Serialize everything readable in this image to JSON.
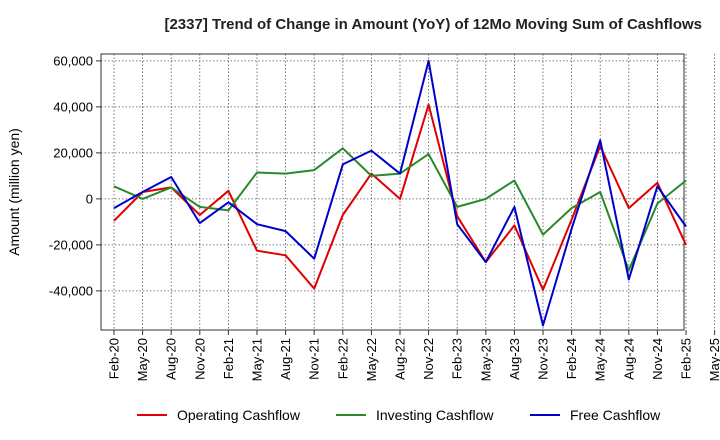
{
  "chart_data": {
    "type": "line",
    "title": "[2337]  Trend of Change in Amount (YoY) of 12Mo Moving Sum of Cashflows",
    "xlabel": "",
    "ylabel": "Amount (million yen)",
    "ylim": [
      -57000,
      63000
    ],
    "yticks": [
      60000,
      40000,
      20000,
      0,
      -20000,
      -40000
    ],
    "ytick_labels": [
      "60,000",
      "40,000",
      "20,000",
      "0",
      "-20,000",
      "-40,000"
    ],
    "x_tick_labels": [
      "Feb-20",
      "May-20",
      "Aug-20",
      "Nov-20",
      "Feb-21",
      "May-21",
      "Aug-21",
      "Nov-21",
      "Feb-22",
      "May-22",
      "Aug-22",
      "Nov-22",
      "Feb-23",
      "May-23",
      "Aug-23",
      "Nov-23",
      "Feb-24",
      "May-24",
      "Aug-24",
      "Nov-24",
      "Feb-25",
      "May-25"
    ],
    "grid": true,
    "legend_position": "bottom",
    "series": [
      {
        "name": "Operating Cashflow",
        "color": "#e00000",
        "values": [
          -9500,
          3000,
          5000,
          -7000,
          3500,
          -22500,
          -24500,
          -39000,
          -7000,
          11000,
          0,
          41000,
          -7500,
          -27500,
          -11500,
          -39500,
          -9000,
          23000,
          -4000,
          7000,
          -20000
        ]
      },
      {
        "name": "Investing Cashflow",
        "color": "#2a8a2a",
        "values": [
          5500,
          0,
          5000,
          -3500,
          -5000,
          11500,
          11000,
          12500,
          22000,
          10000,
          11000,
          19500,
          -3500,
          0,
          8000,
          -15500,
          -4000,
          3000,
          -31000,
          -2000,
          8000
        ]
      },
      {
        "name": "Free Cashflow",
        "color": "#0000cc",
        "values": [
          -4000,
          3000,
          9500,
          -10500,
          -1500,
          -11000,
          -14000,
          -26000,
          15000,
          21000,
          11000,
          60000,
          -11000,
          -27500,
          -3500,
          -55000,
          -13000,
          25500,
          -35000,
          5500,
          -12000
        ]
      }
    ]
  }
}
